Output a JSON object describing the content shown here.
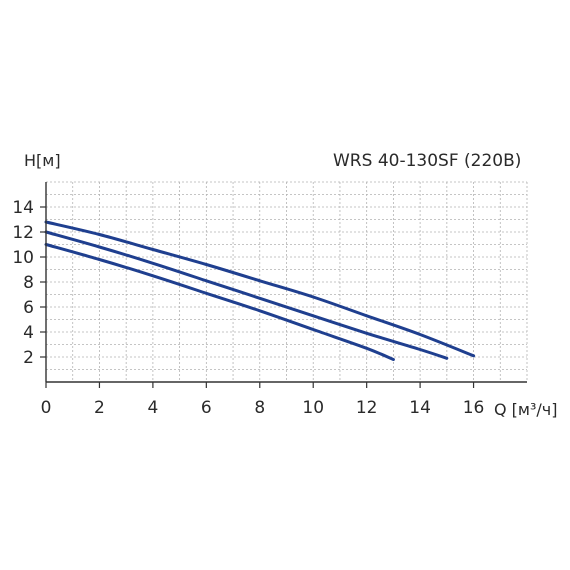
{
  "chart_data": {
    "type": "line",
    "title": "WRS 40-130SF (220В)",
    "ylabel": "H[м]",
    "xlabel": "Q [м³/ч]",
    "xlim": [
      0,
      18
    ],
    "ylim": [
      0,
      16
    ],
    "x_ticks": [
      "0",
      "2",
      "4",
      "6",
      "8",
      "10",
      "12",
      "14",
      "16"
    ],
    "y_ticks": [
      "2",
      "4",
      "6",
      "8",
      "10",
      "12",
      "14"
    ],
    "grid": true,
    "colors": {
      "line": "#1f3f8f",
      "grid": "#b3b3b3",
      "axis": "#333333"
    },
    "series": [
      {
        "x": [
          0,
          2,
          4,
          6,
          8,
          10,
          12,
          14,
          16
        ],
        "y": [
          12.8,
          11.8,
          10.6,
          9.4,
          8.1,
          6.8,
          5.3,
          3.8,
          2.1
        ]
      },
      {
        "x": [
          0,
          2,
          4,
          6,
          8,
          10,
          12,
          14,
          15
        ],
        "y": [
          12.0,
          10.8,
          9.5,
          8.1,
          6.7,
          5.3,
          3.9,
          2.6,
          1.9
        ]
      },
      {
        "x": [
          0,
          2,
          4,
          6,
          8,
          10,
          12,
          13
        ],
        "y": [
          11.0,
          9.8,
          8.5,
          7.1,
          5.7,
          4.2,
          2.7,
          1.8
        ]
      }
    ]
  }
}
